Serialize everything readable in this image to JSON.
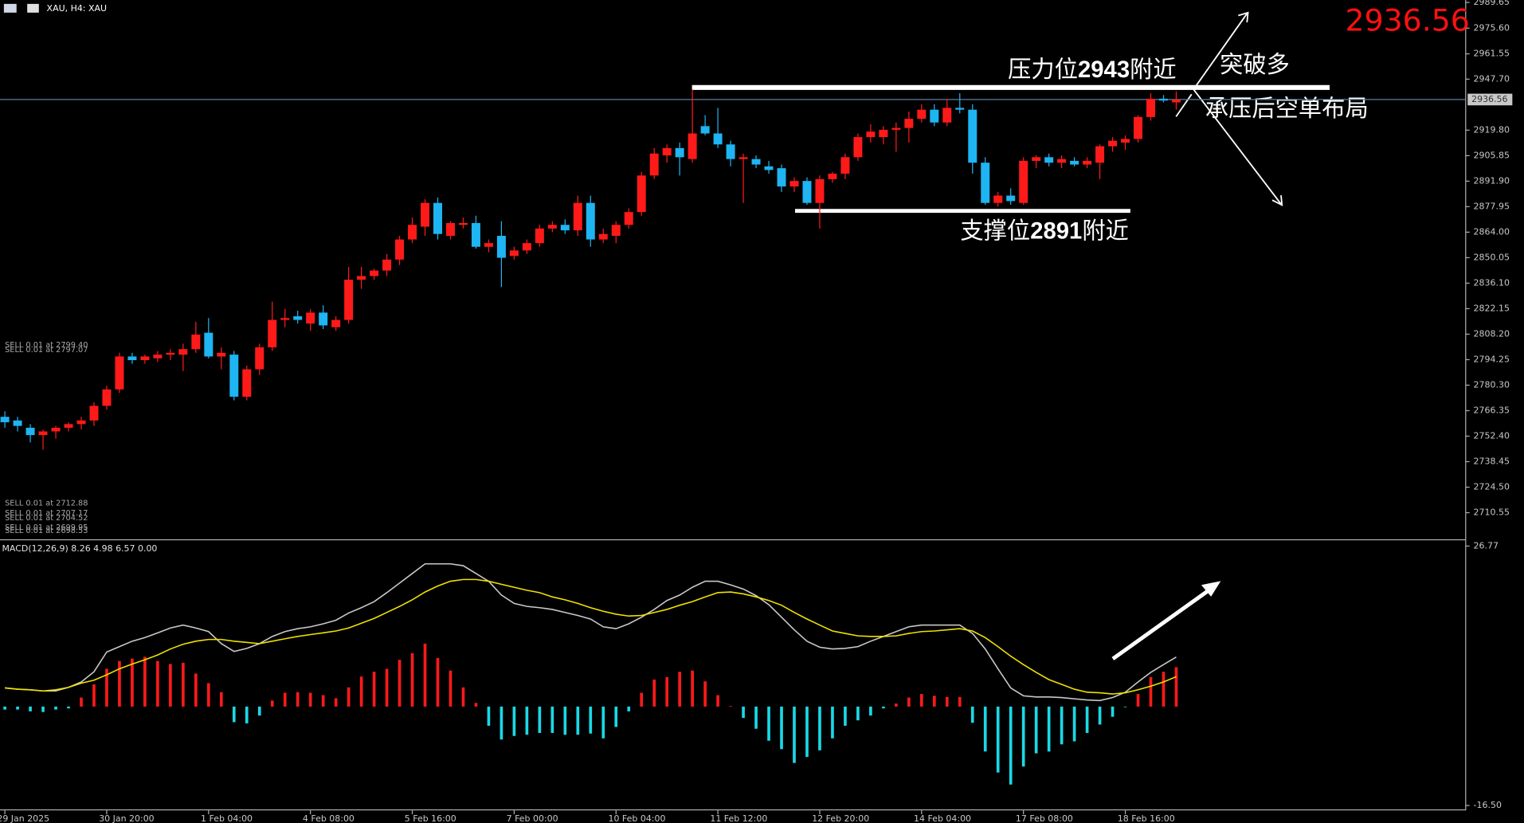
{
  "header": {
    "symbol": "XAU, H4: XAU"
  },
  "chart_data": [
    {
      "type": "candlestick",
      "categories": [
        "29 Jan 2025",
        null,
        null,
        null,
        null,
        null,
        null,
        null,
        "30 Jan 20:00",
        null,
        null,
        null,
        null,
        null,
        null,
        null,
        "1 Feb 04:00",
        null,
        null,
        null,
        null,
        null,
        null,
        null,
        "4 Feb 08:00",
        null,
        null,
        null,
        null,
        null,
        null,
        null,
        "5 Feb 16:00",
        null,
        null,
        null,
        null,
        null,
        null,
        null,
        "7 Feb 00:00",
        null,
        null,
        null,
        null,
        null,
        null,
        null,
        "10 Feb 04:00",
        null,
        null,
        null,
        null,
        null,
        null,
        null,
        "11 Feb 12:00",
        null,
        null,
        null,
        null,
        null,
        null,
        null,
        "12 Feb 20:00",
        null,
        null,
        null,
        null,
        null,
        null,
        null,
        "14 Feb 04:00",
        null,
        null,
        null,
        null,
        null,
        null,
        null,
        "17 Feb 08:00",
        null,
        null,
        null,
        null,
        null,
        null,
        null,
        "18 Feb 16:00",
        null,
        null,
        null,
        null
      ],
      "open": [
        2763,
        2761,
        2757,
        2753,
        2755,
        2757,
        2759,
        2761,
        2769,
        2778,
        2796,
        2794,
        2795,
        2797,
        2797,
        2800,
        2809,
        2796,
        2797,
        2774,
        2789,
        2801,
        2816,
        2818,
        2814,
        2820,
        2812,
        2816,
        2838,
        2840,
        2843,
        2849,
        2860,
        2867,
        2880,
        2862,
        2868,
        2869,
        2856,
        2862,
        2851,
        2854,
        2858,
        2866,
        2868,
        2865,
        2880,
        2860,
        2862,
        2868,
        2875,
        2895,
        2906,
        2910,
        2904,
        2922,
        2918,
        2912,
        2904,
        2904,
        2900,
        2899,
        2889,
        2892,
        2880,
        2893,
        2896,
        2905,
        2916,
        2916,
        2920,
        2921,
        2926,
        2931,
        2924,
        2932,
        2931,
        2902,
        2880,
        2884,
        2880,
        2903,
        2905,
        2902,
        2903,
        2901,
        2902,
        2911,
        2913,
        2915,
        2927,
        2937,
        2935
      ],
      "high": [
        2766,
        2763,
        2759,
        2756,
        2758,
        2760,
        2763,
        2771,
        2780,
        2798,
        2798,
        2797,
        2799,
        2800,
        2803,
        2815,
        2817,
        2801,
        2799,
        2791,
        2803,
        2826,
        2822,
        2821,
        2822,
        2824,
        2818,
        2845,
        2845,
        2844,
        2852,
        2862,
        2872,
        2882,
        2883,
        2870,
        2872,
        2873,
        2860,
        2870,
        2856,
        2860,
        2868,
        2870,
        2871,
        2884,
        2884,
        2866,
        2870,
        2877,
        2897,
        2910,
        2912,
        2913,
        2942,
        2928,
        2932,
        2914,
        2907,
        2906,
        2903,
        2901,
        2894,
        2894,
        2895,
        2897,
        2907,
        2918,
        2923,
        2922,
        2924,
        2930,
        2934,
        2934,
        2937,
        2940,
        2934,
        2905,
        2886,
        2888,
        2905,
        2906,
        2907,
        2906,
        2905,
        2905,
        2912,
        2916,
        2917,
        2928,
        2940,
        2939,
        2941
      ],
      "low": [
        2757,
        2755,
        2749,
        2745,
        2751,
        2755,
        2756,
        2758,
        2767,
        2776,
        2792,
        2792,
        2793,
        2794,
        2788,
        2798,
        2795,
        2789,
        2772,
        2772,
        2786,
        2799,
        2812,
        2814,
        2810,
        2811,
        2810,
        2814,
        2833,
        2838,
        2840,
        2846,
        2858,
        2862,
        2860,
        2860,
        2866,
        2855,
        2853,
        2834,
        2849,
        2852,
        2856,
        2864,
        2863,
        2862,
        2856,
        2858,
        2858,
        2866,
        2873,
        2893,
        2902,
        2895,
        2902,
        2917,
        2910,
        2900,
        2880,
        2899,
        2896,
        2886,
        2886,
        2879,
        2866,
        2891,
        2893,
        2903,
        2913,
        2912,
        2908,
        2913,
        2924,
        2922,
        2922,
        2929,
        2896,
        2879,
        2878,
        2879,
        2879,
        2899,
        2900,
        2899,
        2900,
        2899,
        2893,
        2908,
        2909,
        2913,
        2925,
        2935,
        2931
      ],
      "close": [
        2760,
        2758,
        2753,
        2755,
        2757,
        2759,
        2761,
        2769,
        2778,
        2796,
        2794,
        2796,
        2797,
        2798,
        2800,
        2808,
        2796,
        2798,
        2774,
        2789,
        2801,
        2816,
        2817,
        2816,
        2820,
        2813,
        2816,
        2838,
        2840,
        2843,
        2849,
        2860,
        2868,
        2880,
        2863,
        2869,
        2869,
        2856,
        2858,
        2850,
        2854,
        2858,
        2866,
        2868,
        2865,
        2880,
        2860,
        2863,
        2868,
        2875,
        2895,
        2907,
        2910,
        2905,
        2918,
        2918,
        2912,
        2904,
        2905,
        2901,
        2898,
        2889,
        2892,
        2880,
        2893,
        2896,
        2905,
        2916,
        2919,
        2920,
        2921,
        2926,
        2931,
        2924,
        2932,
        2931,
        2902,
        2880,
        2884,
        2881,
        2903,
        2905,
        2902,
        2904,
        2901,
        2903,
        2911,
        2914,
        2915,
        2927,
        2937,
        2936,
        2936.56
      ],
      "up_color": "#ff1a1a",
      "down_color": "#1fb4f2",
      "ylim": [
        2696,
        2991
      ],
      "yticks": [
        2989.65,
        {
          "value": 2975.6,
          "label": "2975.60"
        },
        2961.55,
        {
          "value": 2947.7,
          "label": "2947.70"
        },
        {
          "value": 2919.8,
          "label": "2919.80"
        },
        2905.85,
        {
          "value": 2891.9,
          "label": "2891.90"
        },
        2877.95,
        {
          "value": 2864,
          "label": "2864.00"
        },
        2850.05,
        {
          "value": 2836.1,
          "label": "2836.10"
        },
        2822.15,
        {
          "value": 2808.2,
          "label": "2808.20"
        },
        2794.25,
        {
          "value": 2780.3,
          "label": "2780.30"
        },
        2766.35,
        {
          "value": 2752.4,
          "label": "2752.40"
        },
        2738.45,
        {
          "value": 2724.5,
          "label": "2724.50"
        },
        2710.55
      ],
      "current_price": 2936.56,
      "annotations": {
        "resistance": [
          "压力位",
          "2943",
          "附近"
        ],
        "breakout": "突破多",
        "short": "承压后空单布局",
        "support": [
          "支撑位",
          "2891",
          "附近"
        ]
      },
      "orders": [
        "SELL 0.01 at 2799.40",
        "SELL 0.01 at 2797.07",
        "SELL 0.01 at 2712.88",
        "SELL 0.01 at 2707.17",
        "SELL 0.01 at 2704.52",
        "SELL 0.01 at 2699.95",
        "SELL 0.01 at 2698.53"
      ]
    },
    {
      "type": "macd",
      "title": "MACD(12,26,9) 8.26 4.98 6.57 0.00",
      "histogram": {
        "up_color": "#ff1a1a",
        "down_color": "#19d9e6",
        "values": [
          -0.5,
          -0.5,
          -0.8,
          -0.9,
          -0.5,
          -0.3,
          1.5,
          3.7,
          6.3,
          7.6,
          8.0,
          8.3,
          7.6,
          7.1,
          7.3,
          5.5,
          3.9,
          2.4,
          -2.6,
          -2.8,
          -1.5,
          1.0,
          2.3,
          2.4,
          2.3,
          1.9,
          1.4,
          3.2,
          5.0,
          5.8,
          6.3,
          7.8,
          8.9,
          10.5,
          8.1,
          6.0,
          3.2,
          0.6,
          -3.2,
          -5.5,
          -4.9,
          -4.7,
          -4.4,
          -4.4,
          -4.7,
          -4.7,
          -4.5,
          -5.3,
          -3.4,
          -0.8,
          2.3,
          4.5,
          4.9,
          5.8,
          6.0,
          4.2,
          1.9,
          0.1,
          -1.9,
          -3.7,
          -5.7,
          -7.1,
          -9.4,
          -8.4,
          -7.3,
          -5.3,
          -3.2,
          -2.3,
          -1.5,
          -0.3,
          0.5,
          1.5,
          2.1,
          1.8,
          1.6,
          1.6,
          -2.7,
          -7.5,
          -11.0,
          -13.0,
          -10.0,
          -7.8,
          -7.5,
          -6.3,
          -5.8,
          -4.4,
          -3.0,
          -1.7,
          -0.1,
          2.1,
          4.9,
          5.8,
          6.57
        ]
      },
      "series": [
        {
          "color": "#c8c8c8",
          "values": [
            3.1,
            2.9,
            2.8,
            2.6,
            2.6,
            3.2,
            4.1,
            5.8,
            9.1,
            10.0,
            10.9,
            11.5,
            12.3,
            13.1,
            13.6,
            13.1,
            12.5,
            10.5,
            9.2,
            9.7,
            10.5,
            11.7,
            12.5,
            13.0,
            13.3,
            13.8,
            14.4,
            15.6,
            16.5,
            17.5,
            19.0,
            20.6,
            22.2,
            23.8,
            23.8,
            23.8,
            23.5,
            22.2,
            20.9,
            18.6,
            17.2,
            16.7,
            16.5,
            16.2,
            15.7,
            15.2,
            14.6,
            13.3,
            13.0,
            13.8,
            14.9,
            16.2,
            17.7,
            18.6,
            19.9,
            20.9,
            20.9,
            20.3,
            19.6,
            18.5,
            17.0,
            14.9,
            12.8,
            10.9,
            9.9,
            9.6,
            9.7,
            10.0,
            10.9,
            11.7,
            12.5,
            13.3,
            13.6,
            13.6,
            13.6,
            13.6,
            12.2,
            9.6,
            6.3,
            3.1,
            1.8,
            1.6,
            1.6,
            1.5,
            1.3,
            1.1,
            1.0,
            1.5,
            2.4,
            4.1,
            5.7,
            7.0,
            8.26
          ]
        },
        {
          "color": "#f0e000",
          "values": [
            3.1,
            2.9,
            2.8,
            2.6,
            2.8,
            3.2,
            3.9,
            4.4,
            5.3,
            6.3,
            7.1,
            7.8,
            8.6,
            9.6,
            10.4,
            10.9,
            11.2,
            11.2,
            10.9,
            10.7,
            10.5,
            10.9,
            11.3,
            11.7,
            12.0,
            12.3,
            12.6,
            13.1,
            13.9,
            14.7,
            15.7,
            16.7,
            17.8,
            19.1,
            20.1,
            20.9,
            21.2,
            21.2,
            20.9,
            20.4,
            19.9,
            19.4,
            19.0,
            18.3,
            17.8,
            17.2,
            16.5,
            15.9,
            15.4,
            15.1,
            15.2,
            15.7,
            16.2,
            16.9,
            17.5,
            18.3,
            19.0,
            19.1,
            18.8,
            18.3,
            17.7,
            16.9,
            15.7,
            14.6,
            13.6,
            12.6,
            12.2,
            11.8,
            11.7,
            11.7,
            11.8,
            12.2,
            12.5,
            12.6,
            12.8,
            13.0,
            12.6,
            11.5,
            10.0,
            8.4,
            7.0,
            5.7,
            4.5,
            3.7,
            2.9,
            2.4,
            2.3,
            2.1,
            2.3,
            2.8,
            3.4,
            4.1,
            4.98
          ]
        }
      ],
      "ylim": [
        -17.15,
        27.74
      ],
      "yticks": [
        26.77,
        {
          "value": -16.5,
          "label": "-16.50"
        }
      ]
    }
  ]
}
